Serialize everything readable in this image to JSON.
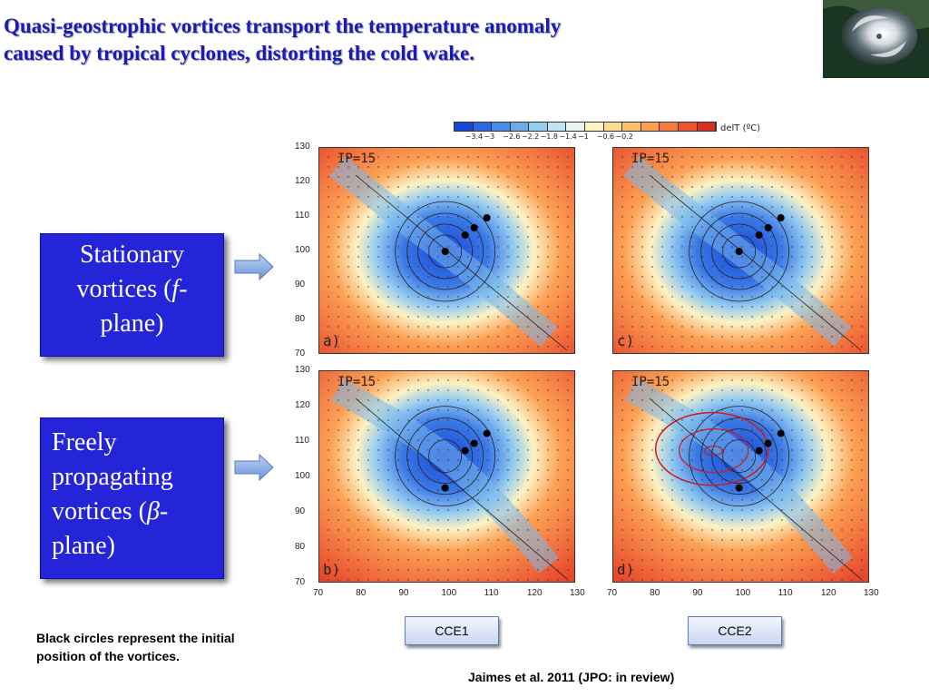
{
  "title": {
    "line1": "Quasi-geostrophic vortices transport the temperature anomaly",
    "line2": "caused by tropical cyclones, distorting the cold wake."
  },
  "boxes": {
    "stationary": {
      "line1": "Stationary",
      "line2a": "vortices (",
      "line2b": "f",
      "line2c": "-",
      "line3": "plane)"
    },
    "freely": {
      "line1": "Freely",
      "line2": "propagating",
      "line3a": "vortices (",
      "line3b": "β",
      "line3c": "-",
      "line4": "plane)"
    }
  },
  "colorbar": {
    "unit": "delT (ºC)",
    "ticks": [
      "−3.4",
      "−3",
      "−2.6",
      "−2.2",
      "−1.8",
      "−1.4",
      "−1",
      "−0.6",
      "−0.2"
    ],
    "colors": [
      "#1848d8",
      "#2e68e0",
      "#4a8ce8",
      "#6eace8",
      "#96ccf0",
      "#bee4f4",
      "#e8f4f0",
      "#fcf2c4",
      "#fcdc90",
      "#fcc070",
      "#fca054",
      "#f87c40",
      "#ee5230",
      "#d83020"
    ]
  },
  "panels": [
    {
      "ip": "IP=15",
      "letter": "a)"
    },
    {
      "ip": "IP=15",
      "letter": "c)"
    },
    {
      "ip": "IP=15",
      "letter": "b)"
    },
    {
      "ip": "IP=15",
      "letter": "d)"
    }
  ],
  "axes": {
    "y_ticks": [
      "130",
      "120",
      "110",
      "100",
      "90",
      "80",
      "70"
    ],
    "x_ticks": [
      "70",
      "80",
      "90",
      "100",
      "110",
      "120",
      "130"
    ]
  },
  "buttons": {
    "cce1": "CCE1",
    "cce2": "CCE2"
  },
  "note": {
    "line1": "Black circles represent the initial",
    "line2": "position of the vortices."
  },
  "citation": "Jaimes et al. 2011 (JPO: in review)"
}
